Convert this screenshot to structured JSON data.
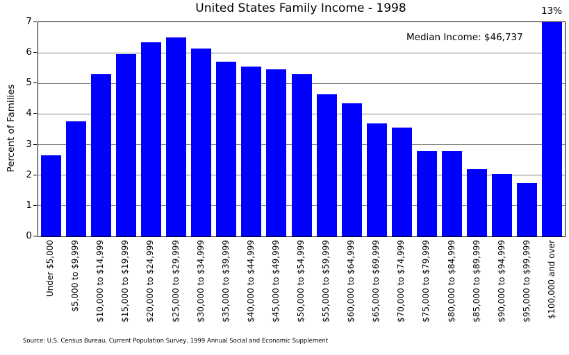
{
  "figure": {
    "title": "United States Family Income - 1998",
    "ylabel": "Percent of Families",
    "annotation": "Median Income: $46,737",
    "top_bar_label": "13%",
    "source": "Source: U.S. Census Bureau, Current Population Survey, 1999 Annual Social and Economic Supplement"
  },
  "chart_data": {
    "type": "bar",
    "title": "United States Family Income - 1998",
    "xlabel": "",
    "ylabel": "Percent of Families",
    "ylim": [
      0,
      7
    ],
    "yticks": [
      0,
      1,
      2,
      3,
      4,
      5,
      6,
      7
    ],
    "grid": true,
    "legend": "none",
    "bar_color": "#0000ff",
    "grid_color": "#808080",
    "axis_color": "#000000",
    "annotation": "Median Income: $46,737",
    "categories": [
      "Under $5,000",
      "$5,000 to $9,999",
      "$10,000 to $14,999",
      "$15,000 to $19,999",
      "$20,000 to $24,999",
      "$25,000 to $29,999",
      "$30,000 to $34,999",
      "$35,000 to $39,999",
      "$40,000 to $44,999",
      "$45,000 to $49,999",
      "$50,000 to $54,999",
      "$55,000 to $59,999",
      "$60,000 to $64,999",
      "$65,000 to $69,999",
      "$70,000 to $74,999",
      "$75,000 to $79,999",
      "$80,000 to $84,999",
      "$85,000 to $89,999",
      "$90,000 to $94,999",
      "$95,000 to $99,999",
      "$100,000 and over"
    ],
    "values": [
      2.65,
      3.75,
      5.3,
      5.95,
      6.35,
      6.5,
      6.15,
      5.7,
      5.55,
      5.45,
      5.3,
      4.65,
      4.35,
      3.7,
      3.55,
      2.78,
      2.78,
      2.2,
      2.05,
      1.75,
      13
    ],
    "value_display_cap": 7,
    "capped_bar_label": "13%"
  }
}
